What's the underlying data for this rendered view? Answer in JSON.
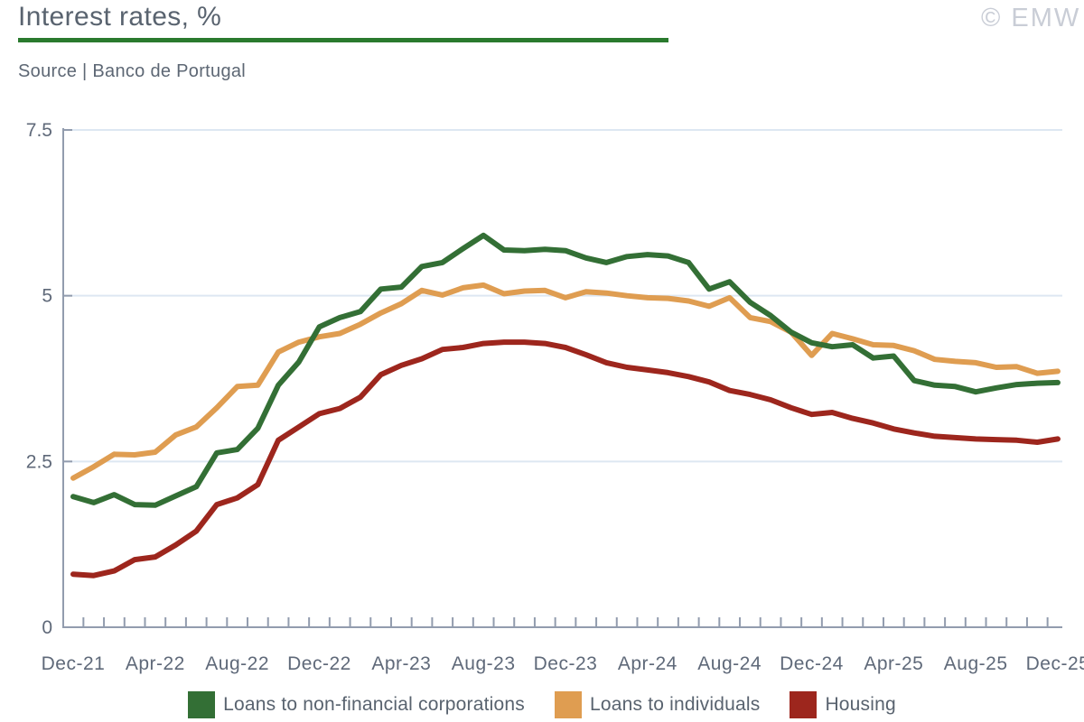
{
  "header": {
    "title": "Interest rates, %",
    "source": "Source | Banco de Portugal",
    "watermark": "© EMW",
    "accent_color": "#2a7a2e"
  },
  "colors": {
    "grid": "#dde7f2",
    "axis": "#929cae",
    "axis_text": "#5f6979"
  },
  "chart_data": {
    "type": "line",
    "title": "Interest rates, %",
    "source": "Source | Banco de Portugal",
    "xlabel": "",
    "ylabel": "",
    "ylim": [
      0,
      7.5
    ],
    "yticks": [
      {
        "label": "0",
        "value": 0
      },
      {
        "label": "2.5",
        "value": 2.5
      },
      {
        "label": "5",
        "value": 5
      },
      {
        "label": "7.5",
        "value": 7.5
      }
    ],
    "grid": true,
    "legend_position": "bottom",
    "x_label_every": 4,
    "x": [
      "Dec-21",
      "Jan-22",
      "Feb-22",
      "Mar-22",
      "Apr-22",
      "May-22",
      "Jun-22",
      "Jul-22",
      "Aug-22",
      "Sep-22",
      "Oct-22",
      "Nov-22",
      "Dec-22",
      "Jan-23",
      "Feb-23",
      "Mar-23",
      "Apr-23",
      "May-23",
      "Jun-23",
      "Jul-23",
      "Aug-23",
      "Sep-23",
      "Oct-23",
      "Nov-23",
      "Dec-23",
      "Jan-24",
      "Feb-24",
      "Mar-24",
      "Apr-24",
      "May-24",
      "Jun-24",
      "Jul-24",
      "Aug-24",
      "Sep-24",
      "Oct-24",
      "Nov-24",
      "Dec-24",
      "Jan-25",
      "Feb-25",
      "Mar-25",
      "Apr-25",
      "May-25",
      "Jun-25",
      "Jul-25",
      "Aug-25",
      "Sep-25",
      "Oct-25",
      "Nov-25",
      "Dec-25"
    ],
    "series": [
      {
        "name": "Loans to non-financial corporations",
        "color": "#336f35",
        "values": [
          1.97,
          1.88,
          2.0,
          1.85,
          1.84,
          1.98,
          2.12,
          2.63,
          2.68,
          3.0,
          3.65,
          4.0,
          4.53,
          4.67,
          4.76,
          5.1,
          5.13,
          5.44,
          5.5,
          5.71,
          5.91,
          5.69,
          5.68,
          5.7,
          5.68,
          5.57,
          5.5,
          5.59,
          5.62,
          5.6,
          5.5,
          5.1,
          5.21,
          4.9,
          4.7,
          4.45,
          4.29,
          4.23,
          4.26,
          4.06,
          4.09,
          3.72,
          3.65,
          3.63,
          3.55,
          3.61,
          3.66,
          3.68,
          3.69
        ]
      },
      {
        "name": "Loans to individuals",
        "color": "#df9d51",
        "values": [
          2.25,
          2.42,
          2.61,
          2.6,
          2.64,
          2.9,
          3.02,
          3.31,
          3.63,
          3.65,
          4.15,
          4.3,
          4.38,
          4.43,
          4.57,
          4.74,
          4.88,
          5.08,
          5.01,
          5.12,
          5.16,
          5.03,
          5.07,
          5.08,
          4.97,
          5.06,
          5.04,
          5.0,
          4.97,
          4.96,
          4.92,
          4.84,
          4.97,
          4.67,
          4.61,
          4.45,
          4.1,
          4.43,
          4.35,
          4.26,
          4.25,
          4.17,
          4.04,
          4.01,
          3.99,
          3.92,
          3.93,
          3.83,
          3.86
        ]
      },
      {
        "name": "Housing",
        "color": "#9d261d",
        "values": [
          0.8,
          0.78,
          0.85,
          1.02,
          1.06,
          1.24,
          1.45,
          1.85,
          1.95,
          2.15,
          2.82,
          3.02,
          3.22,
          3.3,
          3.47,
          3.81,
          3.95,
          4.05,
          4.19,
          4.22,
          4.28,
          4.3,
          4.3,
          4.28,
          4.22,
          4.11,
          3.99,
          3.92,
          3.88,
          3.84,
          3.78,
          3.7,
          3.57,
          3.51,
          3.43,
          3.31,
          3.21,
          3.24,
          3.15,
          3.08,
          2.99,
          2.93,
          2.88,
          2.86,
          2.84,
          2.83,
          2.82,
          2.79,
          2.84
        ]
      }
    ]
  }
}
